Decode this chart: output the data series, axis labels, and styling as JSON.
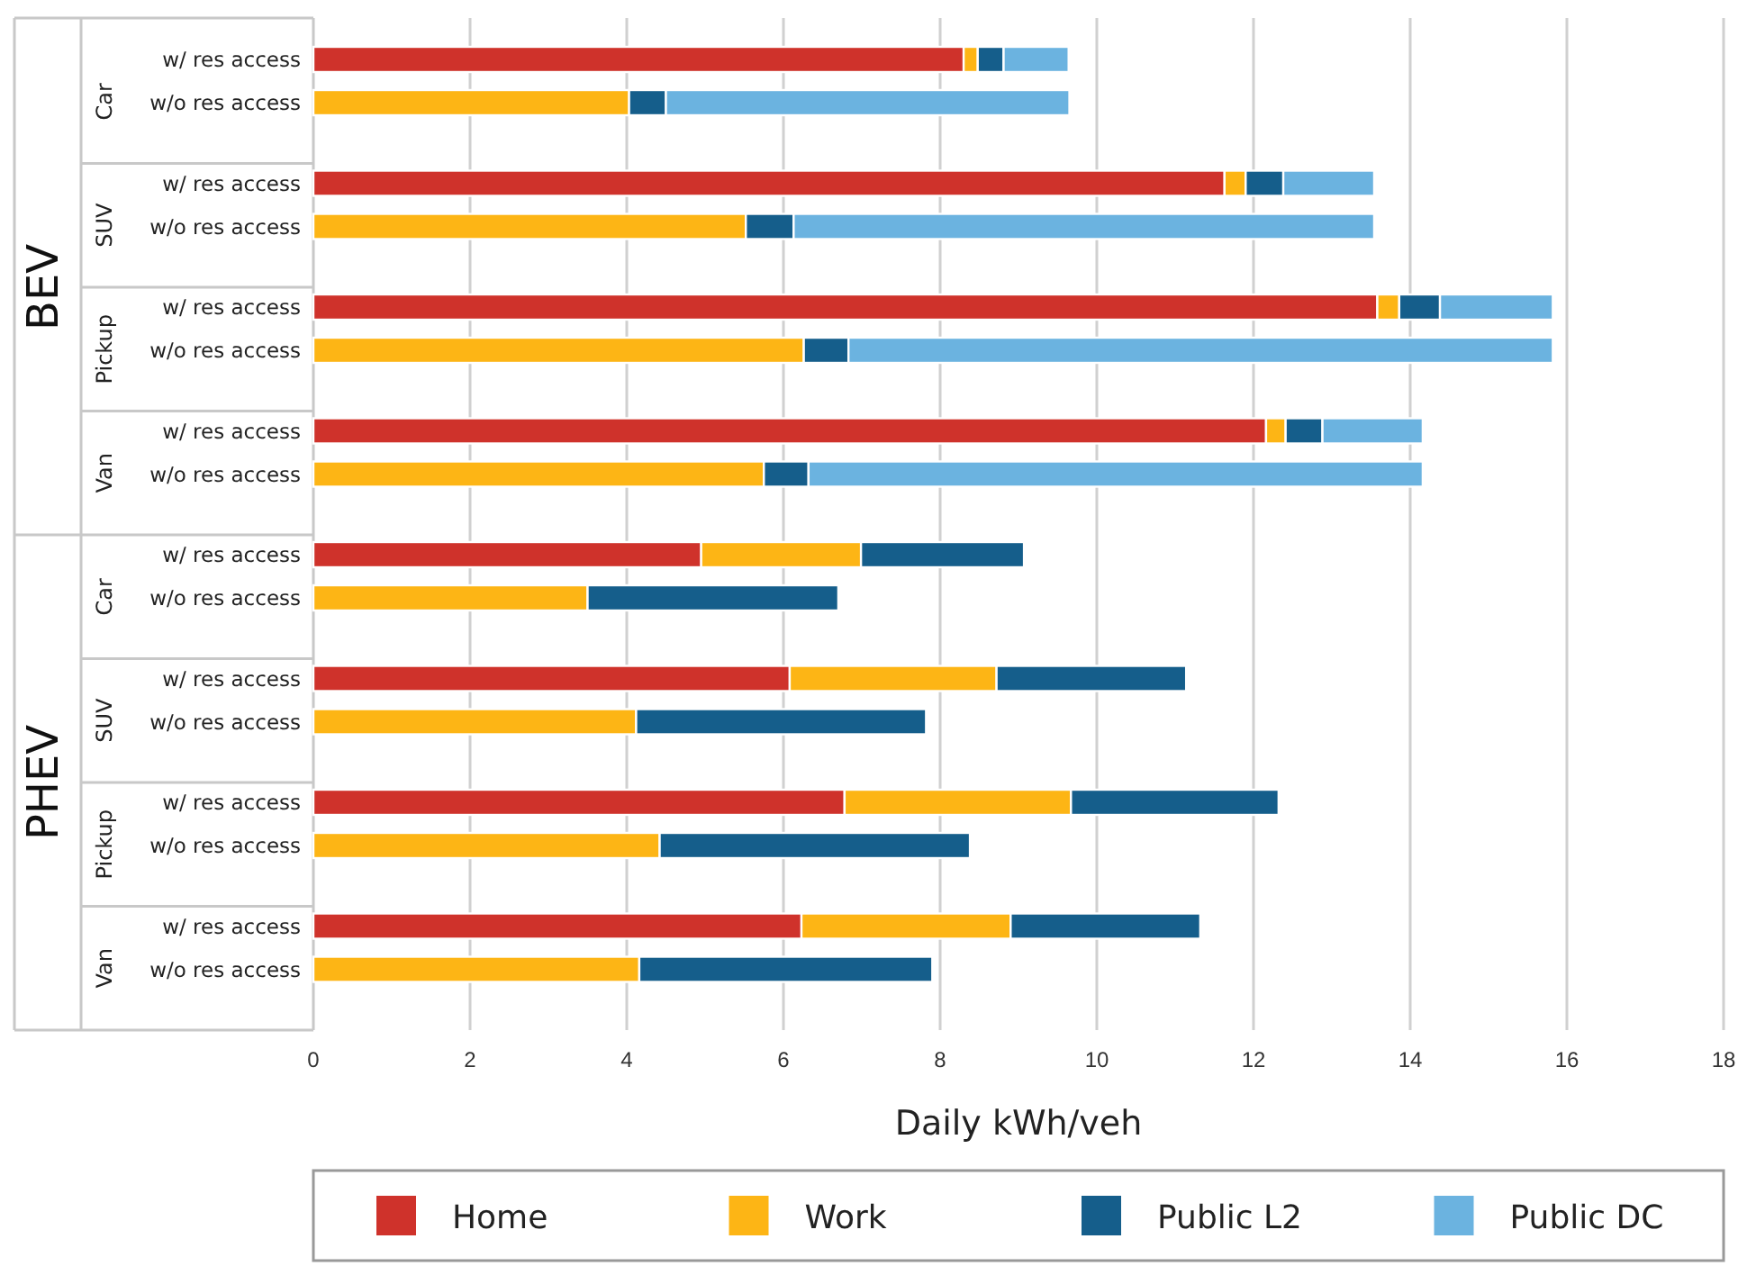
{
  "chart_data": {
    "type": "bar",
    "orientation": "horizontal",
    "stacked": true,
    "xlabel": "Daily kWh/veh",
    "categories": [
      "w/ res access",
      "w/o res access",
      "w/ res access",
      "w/o res access",
      "w/ res access",
      "w/o res access",
      "w/ res access",
      "w/o res access",
      "w/ res access",
      "w/o res access",
      "w/ res access",
      "w/o res access",
      "w/ res access",
      "w/o res access",
      "w/ res access",
      "w/o res access"
    ],
    "series": [
      {
        "name": "Home",
        "color": "#cf322b",
        "values": [
          8.3,
          null,
          11.63,
          null,
          13.58,
          null,
          12.16,
          null,
          4.95,
          null,
          6.08,
          null,
          6.78,
          null,
          6.23,
          null
        ]
      },
      {
        "name": "Work",
        "color": "#fdb515",
        "values": [
          0.18,
          4.03,
          0.27,
          5.52,
          0.28,
          6.26,
          0.25,
          5.75,
          2.04,
          3.5,
          2.64,
          4.12,
          2.89,
          4.42,
          2.67,
          4.16
        ]
      },
      {
        "name": "Public L2",
        "color": "#155e8b",
        "values": [
          0.33,
          0.47,
          0.48,
          0.61,
          0.52,
          0.57,
          0.47,
          0.57,
          2.08,
          3.2,
          2.42,
          3.7,
          2.65,
          3.96,
          2.42,
          3.74
        ]
      },
      {
        "name": "Public DC",
        "color": "#6bb3e0",
        "values": [
          0.83,
          5.15,
          1.16,
          7.41,
          1.44,
          8.99,
          1.28,
          7.84,
          null,
          null,
          null,
          null,
          null,
          null,
          null,
          null
        ]
      }
    ],
    "annotations": [
      "BEV",
      "Car",
      "SUV",
      "Pickup",
      "Van",
      "PHEV",
      "Car",
      "SUV",
      "Pickup",
      "Van"
    ],
    "xlim": [
      0,
      18
    ],
    "xticks": [
      0,
      2,
      4,
      6,
      8,
      10,
      12,
      14,
      16,
      18
    ],
    "grid": "x",
    "legend": "bottom"
  }
}
